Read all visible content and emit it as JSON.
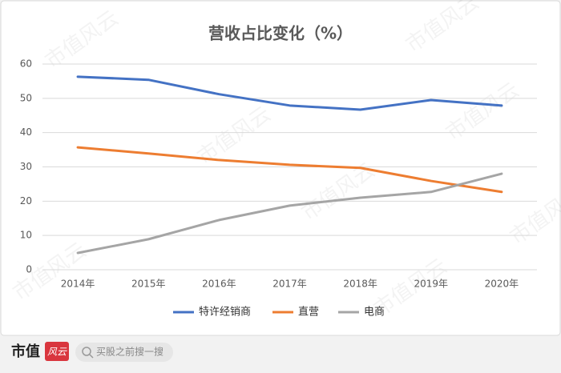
{
  "chart_data": {
    "type": "line",
    "title": "营收占比变化（%）",
    "categories": [
      "2014年",
      "2015年",
      "2016年",
      "2017年",
      "2018年",
      "2019年",
      "2020年"
    ],
    "series": [
      {
        "name": "特许经销商",
        "color": "#4472c4",
        "values": [
          56.3,
          55.4,
          51.2,
          47.9,
          46.7,
          49.5,
          47.9
        ]
      },
      {
        "name": "直营",
        "color": "#ed7d31",
        "values": [
          35.7,
          33.9,
          32.0,
          30.6,
          29.7,
          25.9,
          22.7
        ]
      },
      {
        "name": "电商",
        "color": "#a5a5a5",
        "values": [
          4.9,
          8.9,
          14.5,
          18.7,
          21.0,
          22.7,
          28.0
        ]
      }
    ],
    "ylim": [
      0,
      60
    ],
    "yticks": [
      0,
      10,
      20,
      30,
      40,
      50,
      60
    ],
    "grid": true,
    "legend": "bottom"
  },
  "watermark": "市值风云",
  "footer": {
    "brand": "市值",
    "brand_mark": "风云",
    "search": "买股之前搜一搜"
  }
}
